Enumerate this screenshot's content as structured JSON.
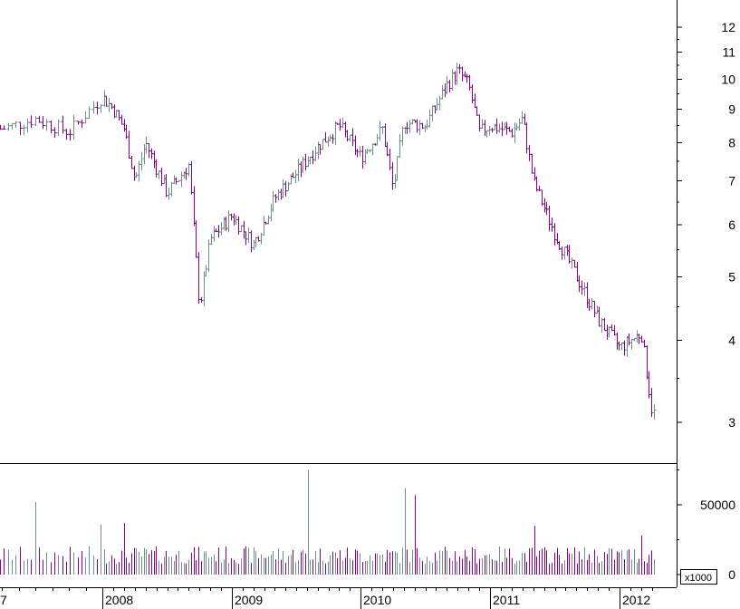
{
  "chart_data": [
    {
      "type": "candlestick",
      "title": "",
      "xlabel": "",
      "ylabel": "",
      "y_scale": "log",
      "ylim": [
        2.6,
        13.2
      ],
      "y_ticks": [
        3,
        4,
        5,
        6,
        7,
        8,
        9,
        10,
        11,
        12
      ],
      "x_tick_labels": [
        "7",
        "2008",
        "2009",
        "2010",
        "2011",
        "2012"
      ],
      "colors": {
        "up": "#6e8f8a",
        "down": "#8b008b"
      },
      "series": [
        {
          "key_points": [
            {
              "date": "2007-07",
              "close": 8.4
            },
            {
              "date": "2007-09",
              "close": 8.7
            },
            {
              "date": "2007-11",
              "close": 8.3
            },
            {
              "date": "2008-01",
              "close": 9.4
            },
            {
              "date": "2008-02",
              "close": 9.0
            },
            {
              "date": "2008-03",
              "close": 8.4
            },
            {
              "date": "2008-04",
              "close": 7.0
            },
            {
              "date": "2008-05",
              "close": 8.0
            },
            {
              "date": "2008-07",
              "close": 6.7
            },
            {
              "date": "2008-09",
              "close": 7.4
            },
            {
              "date": "2008-10",
              "close": 4.5
            },
            {
              "date": "2008-11",
              "close": 5.7
            },
            {
              "date": "2009-01",
              "close": 6.2
            },
            {
              "date": "2009-03",
              "close": 5.6
            },
            {
              "date": "2009-05",
              "close": 6.6
            },
            {
              "date": "2009-07",
              "close": 7.2
            },
            {
              "date": "2009-09",
              "close": 7.9
            },
            {
              "date": "2009-11",
              "close": 8.5
            },
            {
              "date": "2010-01",
              "close": 7.6
            },
            {
              "date": "2010-03",
              "close": 8.4
            },
            {
              "date": "2010-04",
              "close": 6.8
            },
            {
              "date": "2010-05",
              "close": 8.6
            },
            {
              "date": "2010-07",
              "close": 8.5
            },
            {
              "date": "2010-09",
              "close": 9.8
            },
            {
              "date": "2010-10",
              "close": 10.3
            },
            {
              "date": "2010-11",
              "close": 9.8
            },
            {
              "date": "2010-12",
              "close": 8.3
            },
            {
              "date": "2011-01",
              "close": 8.5
            },
            {
              "date": "2011-03",
              "close": 8.3
            },
            {
              "date": "2011-04",
              "close": 8.7
            },
            {
              "date": "2011-05",
              "close": 7.0
            },
            {
              "date": "2011-07",
              "close": 5.8
            },
            {
              "date": "2011-09",
              "close": 5.0
            },
            {
              "date": "2011-11",
              "close": 4.3
            },
            {
              "date": "2012-01",
              "close": 3.9
            },
            {
              "date": "2012-03",
              "close": 4.1
            },
            {
              "date": "2012-04",
              "close": 3.1
            }
          ]
        }
      ]
    },
    {
      "type": "bar",
      "title": "",
      "ylabel": "",
      "unit_label": "x1000",
      "ylim": [
        0,
        80000
      ],
      "y_ticks": [
        0,
        50000
      ],
      "colors": {
        "up": "#6e8f8a",
        "down": "#8b008b"
      },
      "typical_volume": 14000,
      "spikes": [
        {
          "date": "2007-09",
          "value": 52000
        },
        {
          "date": "2008-01",
          "value": 36000
        },
        {
          "date": "2008-03",
          "value": 37000
        },
        {
          "date": "2009-08",
          "value": 75000
        },
        {
          "date": "2010-05",
          "value": 62000
        },
        {
          "date": "2010-06",
          "value": 57000
        },
        {
          "date": "2011-05",
          "value": 35000
        },
        {
          "date": "2012-03",
          "value": 28000
        }
      ]
    }
  ]
}
